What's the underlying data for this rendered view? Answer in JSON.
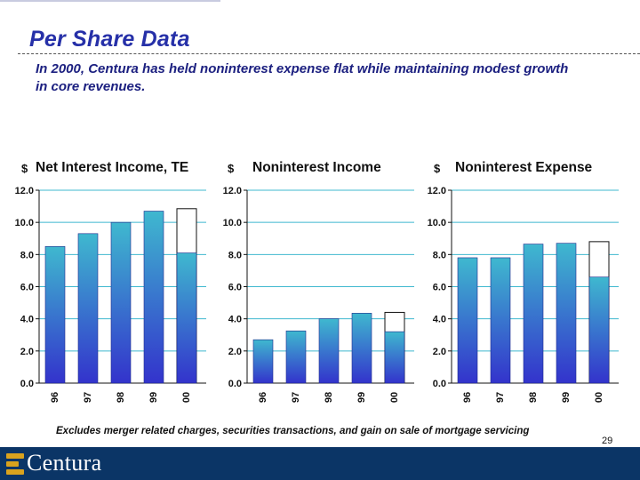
{
  "page": {
    "title": "Per Share Data",
    "subtitle": "In 2000, Centura has held noninterest expense flat while maintaining modest growth in core revenues.",
    "footnote": "Excludes merger related charges, securities transactions, and gain on sale of mortgage servicing",
    "page_number": "29",
    "brand": "Centura"
  },
  "colors": {
    "title": "#2630a8",
    "bar_top": "#3fb8cf",
    "bar_bottom": "#3333cc",
    "gridline": "#3fb8cf",
    "footer": "#0b3566",
    "logo_gold": "#d9a21e"
  },
  "chart_data": [
    {
      "type": "bar",
      "title": "Net Interest Income, TE",
      "ylabel": "$",
      "categories": [
        "96",
        "97",
        "98",
        "99",
        "00"
      ],
      "series": [
        {
          "values": [
            8.5,
            9.3,
            10.0,
            10.7,
            8.1
          ]
        }
      ],
      "overlay_totals": [
        null,
        null,
        null,
        null,
        10.85
      ],
      "ylim": [
        0,
        12
      ],
      "yticks": [
        "0.0",
        "2.0",
        "4.0",
        "6.0",
        "8.0",
        "10.0",
        "12.0"
      ],
      "grid": true
    },
    {
      "type": "bar",
      "title": "Noninterest Income",
      "ylabel": "$",
      "categories": [
        "96",
        "97",
        "98",
        "99",
        "00"
      ],
      "series": [
        {
          "values": [
            2.7,
            3.25,
            4.0,
            4.35,
            3.2
          ]
        }
      ],
      "overlay_totals": [
        null,
        null,
        null,
        null,
        4.4
      ],
      "ylim": [
        0,
        12
      ],
      "yticks": [
        "0.0",
        "2.0",
        "4.0",
        "6.0",
        "8.0",
        "10.0",
        "12.0"
      ],
      "grid": true
    },
    {
      "type": "bar",
      "title": "Noninterest Expense",
      "ylabel": "$",
      "categories": [
        "96",
        "97",
        "98",
        "99",
        "00"
      ],
      "series": [
        {
          "values": [
            7.8,
            7.8,
            8.65,
            8.7,
            6.6
          ]
        }
      ],
      "overlay_totals": [
        null,
        null,
        null,
        null,
        8.8
      ],
      "ylim": [
        0,
        12
      ],
      "yticks": [
        "0.0",
        "2.0",
        "4.0",
        "6.0",
        "8.0",
        "10.0",
        "12.0"
      ],
      "grid": true
    }
  ]
}
